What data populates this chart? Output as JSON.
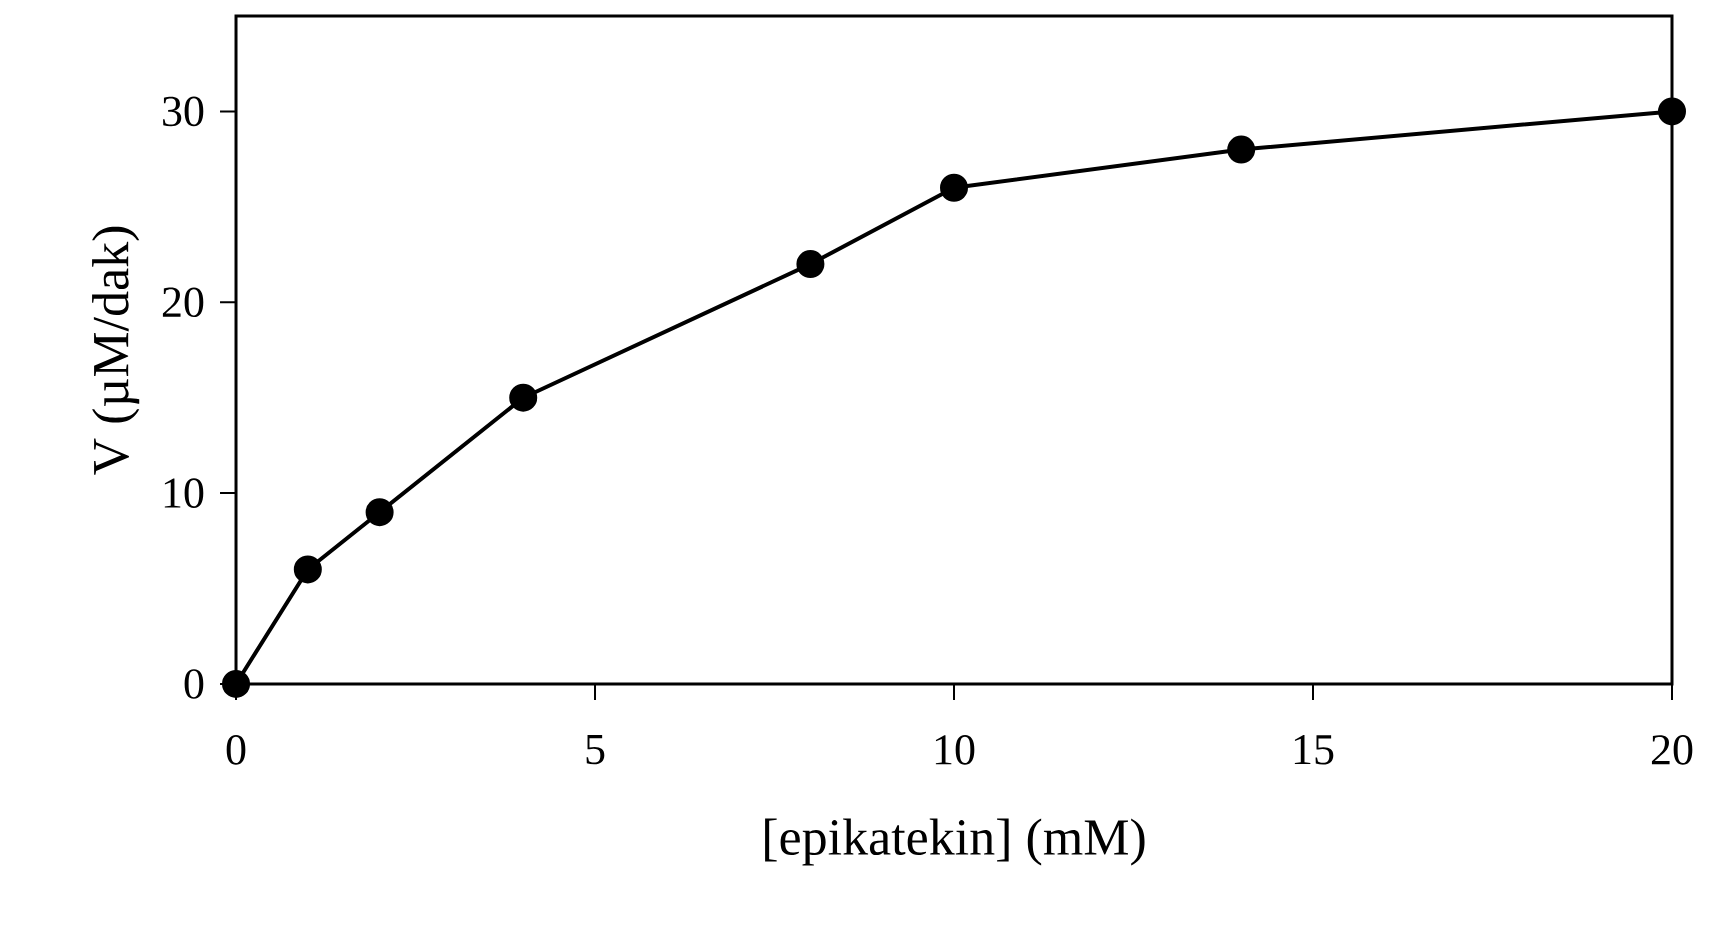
{
  "chart_data": {
    "type": "line",
    "xlabel": "[epikatekin] (mM)",
    "ylabel": "V (µM/dak)",
    "x": [
      0,
      1,
      2,
      4,
      8,
      10,
      14,
      20
    ],
    "series": [
      {
        "color": "#000000",
        "values": [
          0,
          6,
          9,
          15,
          22,
          26,
          28,
          30
        ]
      }
    ],
    "xlim": [
      0,
      20
    ],
    "ylim": [
      0,
      35
    ],
    "xticks": [
      0,
      5,
      10,
      15,
      20
    ],
    "yticks": [
      0,
      10,
      20,
      30
    ],
    "marker": "circle",
    "line_style": "solid"
  }
}
